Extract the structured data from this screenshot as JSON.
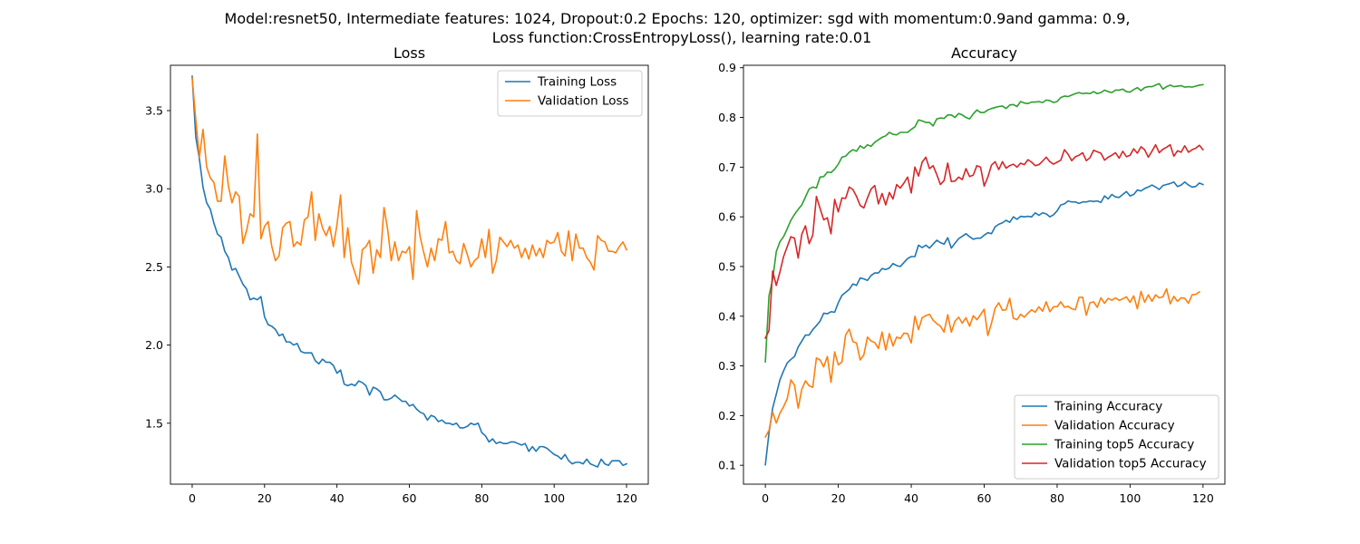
{
  "suptitle": {
    "line1": "Model:resnet50, Intermediate features: 1024, Dropout:0.2 Epochs: 120, optimizer: sgd with momentum:0.9and gamma: 0.9,",
    "line2": "Loss function:CrossEntropyLoss(), learning rate:0.01"
  },
  "colors": {
    "blue": "#1f77b4",
    "orange": "#ff7f0e",
    "green": "#2ca02c",
    "red": "#d62728"
  },
  "chart_data": [
    {
      "type": "line",
      "title": "Loss",
      "xlabel": "",
      "ylabel": "",
      "xlim": [
        -6,
        126
      ],
      "ylim": [
        1.11,
        3.79
      ],
      "xticks": [
        0,
        20,
        40,
        60,
        80,
        100,
        120
      ],
      "yticks": [
        1.5,
        2.0,
        2.5,
        3.0,
        3.5
      ],
      "ytick_labels": [
        "1.5",
        "2.0",
        "2.5",
        "3.0",
        "3.5"
      ],
      "legend_position": "upper-right",
      "grid": false,
      "series": [
        {
          "name": "Training Loss",
          "color": "#1f77b4",
          "values": [
            3.72,
            3.33,
            3.19,
            3.01,
            2.91,
            2.87,
            2.78,
            2.71,
            2.69,
            2.6,
            2.56,
            2.48,
            2.49,
            2.44,
            2.39,
            2.36,
            2.29,
            2.3,
            2.29,
            2.31,
            2.18,
            2.13,
            2.12,
            2.1,
            2.06,
            2.07,
            2.02,
            2.02,
            2.0,
            2.01,
            1.96,
            1.95,
            1.95,
            1.95,
            1.9,
            1.88,
            1.91,
            1.89,
            1.89,
            1.87,
            1.82,
            1.84,
            1.75,
            1.74,
            1.75,
            1.74,
            1.77,
            1.76,
            1.74,
            1.68,
            1.73,
            1.72,
            1.7,
            1.65,
            1.65,
            1.66,
            1.68,
            1.66,
            1.64,
            1.64,
            1.61,
            1.62,
            1.59,
            1.57,
            1.56,
            1.52,
            1.55,
            1.54,
            1.51,
            1.52,
            1.5,
            1.5,
            1.49,
            1.5,
            1.47,
            1.47,
            1.48,
            1.5,
            1.49,
            1.5,
            1.44,
            1.42,
            1.38,
            1.4,
            1.37,
            1.38,
            1.37,
            1.37,
            1.38,
            1.38,
            1.37,
            1.36,
            1.37,
            1.32,
            1.35,
            1.32,
            1.35,
            1.35,
            1.34,
            1.32,
            1.3,
            1.29,
            1.27,
            1.3,
            1.26,
            1.24,
            1.25,
            1.25,
            1.24,
            1.27,
            1.24,
            1.23,
            1.22,
            1.27,
            1.24,
            1.23,
            1.26,
            1.26,
            1.26,
            1.23,
            1.24
          ]
        },
        {
          "name": "Validation Loss",
          "color": "#ff7f0e",
          "values": [
            3.71,
            3.44,
            3.2,
            3.38,
            3.14,
            3.07,
            3.04,
            2.92,
            2.92,
            3.21,
            3.02,
            2.91,
            2.98,
            2.95,
            2.65,
            2.73,
            2.84,
            2.82,
            3.35,
            2.68,
            2.76,
            2.79,
            2.63,
            2.54,
            2.57,
            2.75,
            2.78,
            2.79,
            2.63,
            2.66,
            2.64,
            2.8,
            2.82,
            2.98,
            2.67,
            2.84,
            2.75,
            2.7,
            2.76,
            2.63,
            2.77,
            2.96,
            2.56,
            2.75,
            2.53,
            2.46,
            2.39,
            2.61,
            2.63,
            2.67,
            2.46,
            2.61,
            2.56,
            2.88,
            2.74,
            2.54,
            2.66,
            2.54,
            2.6,
            2.59,
            2.63,
            2.42,
            2.86,
            2.69,
            2.59,
            2.5,
            2.62,
            2.54,
            2.68,
            2.67,
            2.79,
            2.59,
            2.6,
            2.54,
            2.52,
            2.65,
            2.58,
            2.5,
            2.54,
            2.56,
            2.68,
            2.56,
            2.74,
            2.46,
            2.54,
            2.69,
            2.66,
            2.63,
            2.67,
            2.62,
            2.64,
            2.56,
            2.62,
            2.55,
            2.64,
            2.57,
            2.62,
            2.56,
            2.67,
            2.65,
            2.66,
            2.72,
            2.6,
            2.57,
            2.73,
            2.54,
            2.71,
            2.62,
            2.62,
            2.56,
            2.53,
            2.48,
            2.7,
            2.67,
            2.66,
            2.6,
            2.6,
            2.59,
            2.63,
            2.66,
            2.61
          ]
        }
      ]
    },
    {
      "type": "line",
      "title": "Accuracy",
      "xlabel": "",
      "ylabel": "",
      "xlim": [
        -6,
        126
      ],
      "ylim": [
        0.062,
        0.905
      ],
      "xticks": [
        0,
        20,
        40,
        60,
        80,
        100,
        120
      ],
      "yticks": [
        0.1,
        0.2,
        0.3,
        0.4,
        0.5,
        0.6,
        0.7,
        0.8,
        0.9
      ],
      "ytick_labels": [
        "0.1",
        "0.2",
        "0.3",
        "0.4",
        "0.5",
        "0.6",
        "0.7",
        "0.8",
        "0.9"
      ],
      "legend_position": "lower-right",
      "grid": false,
      "series": [
        {
          "name": "Training Accuracy",
          "color": "#1f77b4",
          "values": [
            0.101,
            0.165,
            0.215,
            0.243,
            0.272,
            0.29,
            0.306,
            0.313,
            0.319,
            0.338,
            0.35,
            0.362,
            0.362,
            0.373,
            0.381,
            0.39,
            0.406,
            0.405,
            0.409,
            0.408,
            0.427,
            0.442,
            0.448,
            0.454,
            0.465,
            0.462,
            0.477,
            0.475,
            0.472,
            0.482,
            0.487,
            0.487,
            0.496,
            0.494,
            0.497,
            0.506,
            0.502,
            0.5,
            0.508,
            0.516,
            0.52,
            0.52,
            0.543,
            0.538,
            0.543,
            0.537,
            0.545,
            0.553,
            0.548,
            0.545,
            0.558,
            0.537,
            0.547,
            0.556,
            0.561,
            0.566,
            0.56,
            0.555,
            0.557,
            0.557,
            0.563,
            0.568,
            0.566,
            0.58,
            0.585,
            0.588,
            0.593,
            0.589,
            0.6,
            0.595,
            0.601,
            0.6,
            0.601,
            0.6,
            0.608,
            0.603,
            0.608,
            0.606,
            0.6,
            0.604,
            0.612,
            0.624,
            0.626,
            0.632,
            0.63,
            0.63,
            0.627,
            0.63,
            0.63,
            0.632,
            0.631,
            0.632,
            0.629,
            0.642,
            0.636,
            0.645,
            0.64,
            0.639,
            0.645,
            0.651,
            0.642,
            0.645,
            0.654,
            0.652,
            0.657,
            0.66,
            0.664,
            0.66,
            0.655,
            0.663,
            0.665,
            0.667,
            0.67,
            0.661,
            0.664,
            0.67,
            0.664,
            0.66,
            0.661,
            0.668,
            0.665
          ]
        },
        {
          "name": "Validation Accuracy",
          "color": "#ff7f0e",
          "values": [
            0.157,
            0.17,
            0.207,
            0.185,
            0.205,
            0.218,
            0.234,
            0.272,
            0.261,
            0.215,
            0.253,
            0.27,
            0.26,
            0.257,
            0.316,
            0.312,
            0.298,
            0.319,
            0.267,
            0.328,
            0.302,
            0.308,
            0.362,
            0.374,
            0.349,
            0.346,
            0.312,
            0.322,
            0.358,
            0.35,
            0.347,
            0.335,
            0.368,
            0.332,
            0.365,
            0.34,
            0.358,
            0.355,
            0.366,
            0.365,
            0.346,
            0.4,
            0.373,
            0.397,
            0.401,
            0.404,
            0.392,
            0.385,
            0.38,
            0.368,
            0.403,
            0.368,
            0.39,
            0.398,
            0.386,
            0.397,
            0.38,
            0.401,
            0.393,
            0.403,
            0.414,
            0.361,
            0.386,
            0.416,
            0.427,
            0.412,
            0.413,
            0.436,
            0.396,
            0.393,
            0.404,
            0.398,
            0.406,
            0.413,
            0.408,
            0.419,
            0.41,
            0.429,
            0.409,
            0.419,
            0.419,
            0.429,
            0.418,
            0.42,
            0.415,
            0.413,
            0.438,
            0.438,
            0.402,
            0.427,
            0.429,
            0.418,
            0.437,
            0.426,
            0.436,
            0.432,
            0.437,
            0.432,
            0.435,
            0.439,
            0.428,
            0.441,
            0.415,
            0.45,
            0.428,
            0.443,
            0.43,
            0.443,
            0.437,
            0.439,
            0.455,
            0.425,
            0.44,
            0.43,
            0.437,
            0.436,
            0.426,
            0.443,
            0.444,
            0.449
          ]
        },
        {
          "name": "Training top5 Accuracy",
          "color": "#2ca02c",
          "values": [
            0.308,
            0.441,
            0.474,
            0.53,
            0.55,
            0.56,
            0.576,
            0.593,
            0.605,
            0.615,
            0.624,
            0.64,
            0.656,
            0.66,
            0.658,
            0.68,
            0.681,
            0.69,
            0.689,
            0.696,
            0.706,
            0.72,
            0.722,
            0.73,
            0.735,
            0.732,
            0.743,
            0.738,
            0.745,
            0.742,
            0.75,
            0.755,
            0.76,
            0.763,
            0.77,
            0.766,
            0.765,
            0.77,
            0.77,
            0.77,
            0.776,
            0.781,
            0.795,
            0.793,
            0.79,
            0.79,
            0.783,
            0.797,
            0.799,
            0.798,
            0.805,
            0.805,
            0.8,
            0.808,
            0.805,
            0.8,
            0.797,
            0.807,
            0.815,
            0.81,
            0.81,
            0.815,
            0.818,
            0.82,
            0.822,
            0.823,
            0.818,
            0.825,
            0.826,
            0.822,
            0.832,
            0.829,
            0.828,
            0.831,
            0.831,
            0.832,
            0.83,
            0.835,
            0.834,
            0.83,
            0.832,
            0.84,
            0.843,
            0.842,
            0.845,
            0.848,
            0.85,
            0.848,
            0.849,
            0.848,
            0.852,
            0.848,
            0.85,
            0.855,
            0.852,
            0.85,
            0.855,
            0.855,
            0.857,
            0.852,
            0.851,
            0.856,
            0.86,
            0.854,
            0.86,
            0.862,
            0.862,
            0.865,
            0.868,
            0.857,
            0.862,
            0.865,
            0.862,
            0.863,
            0.864,
            0.861,
            0.862,
            0.861,
            0.863,
            0.865,
            0.866
          ]
        },
        {
          "name": "Validation top5 Accuracy",
          "color": "#d62728",
          "values": [
            0.356,
            0.371,
            0.491,
            0.462,
            0.489,
            0.52,
            0.54,
            0.56,
            0.557,
            0.517,
            0.565,
            0.582,
            0.546,
            0.563,
            0.641,
            0.617,
            0.594,
            0.598,
            0.566,
            0.635,
            0.61,
            0.638,
            0.637,
            0.66,
            0.655,
            0.641,
            0.623,
            0.618,
            0.638,
            0.656,
            0.663,
            0.626,
            0.647,
            0.624,
            0.649,
            0.636,
            0.665,
            0.658,
            0.668,
            0.68,
            0.648,
            0.7,
            0.682,
            0.71,
            0.72,
            0.697,
            0.703,
            0.685,
            0.665,
            0.673,
            0.708,
            0.671,
            0.672,
            0.68,
            0.675,
            0.697,
            0.681,
            0.684,
            0.703,
            0.7,
            0.662,
            0.68,
            0.704,
            0.711,
            0.695,
            0.711,
            0.698,
            0.703,
            0.706,
            0.7,
            0.708,
            0.705,
            0.715,
            0.71,
            0.703,
            0.705,
            0.712,
            0.72,
            0.711,
            0.706,
            0.71,
            0.714,
            0.735,
            0.726,
            0.713,
            0.721,
            0.724,
            0.729,
            0.713,
            0.719,
            0.734,
            0.731,
            0.728,
            0.714,
            0.72,
            0.724,
            0.729,
            0.718,
            0.732,
            0.721,
            0.724,
            0.737,
            0.728,
            0.741,
            0.735,
            0.72,
            0.732,
            0.745,
            0.729,
            0.736,
            0.74,
            0.745,
            0.722,
            0.733,
            0.73,
            0.743,
            0.73,
            0.735,
            0.738,
            0.744,
            0.735
          ]
        }
      ]
    }
  ]
}
